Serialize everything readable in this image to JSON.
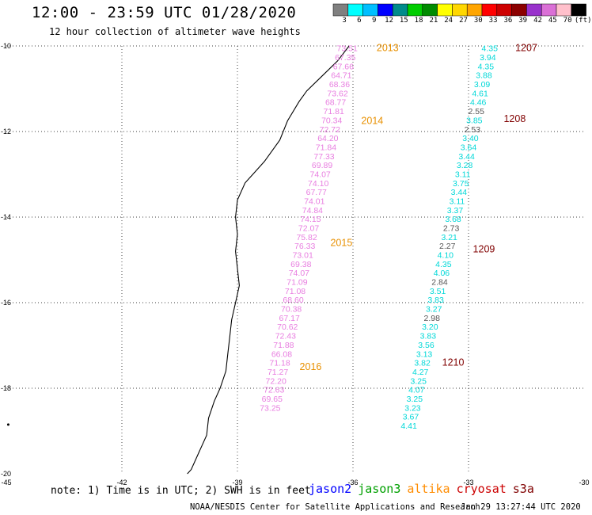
{
  "header": {
    "title": "12:00 - 23:59 UTC 01/28/2020",
    "subtitle": "12 hour collection of altimeter wave heights"
  },
  "colorscale": {
    "colors": [
      "#808080",
      "#00ffff",
      "#00bfff",
      "#0000ff",
      "#008b8b",
      "#00cd00",
      "#008b00",
      "#ffff00",
      "#ffd700",
      "#ffa500",
      "#ff0000",
      "#cd0000",
      "#8b0000",
      "#9932cc",
      "#da70d6",
      "#ffc0cb",
      "#000000"
    ],
    "labels": [
      "3",
      "6",
      "9",
      "12",
      "15",
      "18",
      "21",
      "24",
      "27",
      "30",
      "33",
      "36",
      "39",
      "42",
      "45",
      "70",
      "(ft)"
    ]
  },
  "map": {
    "lon_min": -45,
    "lon_max": -30,
    "lat_min": -20,
    "lat_max": -10,
    "lon_ticks": [
      "-45",
      "-42",
      "-39",
      "-36",
      "-33",
      "-30"
    ],
    "lat_ticks": [
      "-10",
      "-12",
      "-14",
      "-16",
      "-18",
      "-20"
    ],
    "coast": [
      [
        -36.1,
        -10.0
      ],
      [
        -36.4,
        -10.35
      ],
      [
        -36.8,
        -10.7
      ],
      [
        -37.2,
        -11.05
      ],
      [
        -37.4,
        -11.3
      ],
      [
        -37.7,
        -11.75
      ],
      [
        -37.9,
        -12.2
      ],
      [
        -38.3,
        -12.7
      ],
      [
        -38.6,
        -13.0
      ],
      [
        -38.8,
        -13.2
      ],
      [
        -39.0,
        -13.6
      ],
      [
        -39.05,
        -14.0
      ],
      [
        -39.0,
        -14.4
      ],
      [
        -39.05,
        -14.8
      ],
      [
        -39.0,
        -15.2
      ],
      [
        -38.95,
        -15.6
      ],
      [
        -39.05,
        -16.0
      ],
      [
        -39.15,
        -16.4
      ],
      [
        -39.2,
        -16.8
      ],
      [
        -39.25,
        -17.2
      ],
      [
        -39.3,
        -17.6
      ],
      [
        -39.45,
        -18.0
      ],
      [
        -39.6,
        -18.3
      ],
      [
        -39.75,
        -18.7
      ],
      [
        -39.8,
        -19.1
      ],
      [
        -40.0,
        -19.5
      ],
      [
        -40.2,
        -19.9
      ],
      [
        -40.3,
        -20.0
      ]
    ],
    "islands": [
      [
        -44.95,
        -18.85
      ]
    ]
  },
  "tracks": [
    {
      "satellite": "cryosat",
      "color": "#e87ee0",
      "points": [
        {
          "lon": -36.15,
          "lat": -10.05,
          "value": "73.51"
        },
        {
          "lon": -36.2,
          "lat": -10.26,
          "value": "67.35"
        },
        {
          "lon": -36.25,
          "lat": -10.47,
          "value": "67.66"
        },
        {
          "lon": -36.3,
          "lat": -10.68,
          "value": "64.71"
        },
        {
          "lon": -36.35,
          "lat": -10.89,
          "value": "68.36"
        },
        {
          "lon": -36.4,
          "lat": -11.1,
          "value": "73.62"
        },
        {
          "lon": -36.45,
          "lat": -11.31,
          "value": "68.77"
        },
        {
          "lon": -36.5,
          "lat": -11.52,
          "value": "71.81"
        },
        {
          "lon": -36.55,
          "lat": -11.73,
          "value": "70.34"
        },
        {
          "lon": -36.6,
          "lat": -11.94,
          "value": "72.72"
        },
        {
          "lon": -36.65,
          "lat": -12.15,
          "value": "64.20"
        },
        {
          "lon": -36.7,
          "lat": -12.36,
          "value": "71.84"
        },
        {
          "lon": -36.75,
          "lat": -12.57,
          "value": "77.33"
        },
        {
          "lon": -36.8,
          "lat": -12.78,
          "value": "69.89"
        },
        {
          "lon": -36.85,
          "lat": -12.99,
          "value": "74.07"
        },
        {
          "lon": -36.9,
          "lat": -13.2,
          "value": "74.10"
        },
        {
          "lon": -36.95,
          "lat": -13.41,
          "value": "67.77"
        },
        {
          "lon": -37.0,
          "lat": -13.62,
          "value": "74.01"
        },
        {
          "lon": -37.05,
          "lat": -13.83,
          "value": "74.84"
        },
        {
          "lon": -37.1,
          "lat": -14.04,
          "value": "74.15"
        },
        {
          "lon": -37.15,
          "lat": -14.25,
          "value": "72.07"
        },
        {
          "lon": -37.2,
          "lat": -14.46,
          "value": "75.82"
        },
        {
          "lon": -37.25,
          "lat": -14.67,
          "value": "76.33"
        },
        {
          "lon": -37.3,
          "lat": -14.88,
          "value": "73.01"
        },
        {
          "lon": -37.35,
          "lat": -15.09,
          "value": "69.38"
        },
        {
          "lon": -37.4,
          "lat": -15.3,
          "value": "74.07"
        },
        {
          "lon": -37.45,
          "lat": -15.51,
          "value": "71.09"
        },
        {
          "lon": -37.5,
          "lat": -15.72,
          "value": "71.08"
        },
        {
          "lon": -37.55,
          "lat": -15.93,
          "value": "68.60"
        },
        {
          "lon": -37.6,
          "lat": -16.14,
          "value": "70.38"
        },
        {
          "lon": -37.65,
          "lat": -16.35,
          "value": "67.17"
        },
        {
          "lon": -37.7,
          "lat": -16.56,
          "value": "70.62"
        },
        {
          "lon": -37.75,
          "lat": -16.77,
          "value": "72.43"
        },
        {
          "lon": -37.8,
          "lat": -16.98,
          "value": "71.88"
        },
        {
          "lon": -37.85,
          "lat": -17.19,
          "value": "66.08"
        },
        {
          "lon": -37.9,
          "lat": -17.4,
          "value": "71.18"
        },
        {
          "lon": -37.95,
          "lat": -17.61,
          "value": "71.27"
        },
        {
          "lon": -38.0,
          "lat": -17.82,
          "value": "72.20"
        },
        {
          "lon": -38.05,
          "lat": -18.03,
          "value": "72.63"
        },
        {
          "lon": -38.1,
          "lat": -18.24,
          "value": "69.65"
        },
        {
          "lon": -38.15,
          "lat": -18.45,
          "value": "73.25"
        }
      ]
    },
    {
      "satellite": "jason3",
      "color": "#00d8d8",
      "points": [
        {
          "lon": -32.45,
          "lat": -10.05,
          "value": "4.35"
        },
        {
          "lon": -32.5,
          "lat": -10.26,
          "value": "3.94"
        },
        {
          "lon": -32.55,
          "lat": -10.47,
          "value": "4.35"
        },
        {
          "lon": -32.6,
          "lat": -10.68,
          "value": "3.88"
        },
        {
          "lon": -32.65,
          "lat": -10.89,
          "value": "3.09"
        },
        {
          "lon": -32.7,
          "lat": -11.1,
          "value": "4.61"
        },
        {
          "lon": -32.75,
          "lat": -11.31,
          "value": "4.46"
        },
        {
          "lon": -32.8,
          "lat": -11.52,
          "value": "2.55",
          "color": "#555555"
        },
        {
          "lon": -32.85,
          "lat": -11.73,
          "value": "3.85"
        },
        {
          "lon": -32.9,
          "lat": -11.94,
          "value": "2.53",
          "color": "#555555"
        },
        {
          "lon": -32.95,
          "lat": -12.15,
          "value": "3.40"
        },
        {
          "lon": -33.0,
          "lat": -12.36,
          "value": "3.64"
        },
        {
          "lon": -33.05,
          "lat": -12.57,
          "value": "3.44"
        },
        {
          "lon": -33.1,
          "lat": -12.78,
          "value": "3.28"
        },
        {
          "lon": -33.15,
          "lat": -12.99,
          "value": "3.11"
        },
        {
          "lon": -33.2,
          "lat": -13.2,
          "value": "3.75"
        },
        {
          "lon": -33.25,
          "lat": -13.41,
          "value": "3.44"
        },
        {
          "lon": -33.3,
          "lat": -13.62,
          "value": "3.11"
        },
        {
          "lon": -33.35,
          "lat": -13.83,
          "value": "3.37"
        },
        {
          "lon": -33.4,
          "lat": -14.04,
          "value": "3.68"
        },
        {
          "lon": -33.45,
          "lat": -14.25,
          "value": "2.73",
          "color": "#555555"
        },
        {
          "lon": -33.5,
          "lat": -14.46,
          "value": "3.21"
        },
        {
          "lon": -33.55,
          "lat": -14.67,
          "value": "2.27",
          "color": "#555555"
        },
        {
          "lon": -33.6,
          "lat": -14.88,
          "value": "4.10"
        },
        {
          "lon": -33.65,
          "lat": -15.09,
          "value": "4.35"
        },
        {
          "lon": -33.7,
          "lat": -15.3,
          "value": "4.06"
        },
        {
          "lon": -33.75,
          "lat": -15.51,
          "value": "2.84",
          "color": "#555555"
        },
        {
          "lon": -33.8,
          "lat": -15.72,
          "value": "3.51"
        },
        {
          "lon": -33.85,
          "lat": -15.93,
          "value": "3.83"
        },
        {
          "lon": -33.9,
          "lat": -16.14,
          "value": "3.27"
        },
        {
          "lon": -33.95,
          "lat": -16.35,
          "value": "2.98",
          "color": "#555555"
        },
        {
          "lon": -34.0,
          "lat": -16.56,
          "value": "3.20"
        },
        {
          "lon": -34.05,
          "lat": -16.77,
          "value": "3.83"
        },
        {
          "lon": -34.1,
          "lat": -16.98,
          "value": "3.56"
        },
        {
          "lon": -34.15,
          "lat": -17.19,
          "value": "3.13"
        },
        {
          "lon": -34.2,
          "lat": -17.4,
          "value": "3.82"
        },
        {
          "lon": -34.25,
          "lat": -17.61,
          "value": "4.27"
        },
        {
          "lon": -34.3,
          "lat": -17.82,
          "value": "3.25"
        },
        {
          "lon": -34.35,
          "lat": -18.03,
          "value": "4.07"
        },
        {
          "lon": -34.4,
          "lat": -18.24,
          "value": "3.25"
        },
        {
          "lon": -34.45,
          "lat": -18.45,
          "value": "3.23"
        },
        {
          "lon": -34.5,
          "lat": -18.66,
          "value": "3.67"
        },
        {
          "lon": -34.55,
          "lat": -18.87,
          "value": "4.41"
        }
      ]
    }
  ],
  "time_labels": [
    {
      "text": "2013",
      "lon": -35.1,
      "lat": -10.05,
      "color": "#e89000"
    },
    {
      "text": "2014",
      "lon": -35.5,
      "lat": -11.75,
      "color": "#e89000"
    },
    {
      "text": "2015",
      "lon": -36.3,
      "lat": -14.6,
      "color": "#e89000"
    },
    {
      "text": "2016",
      "lon": -37.1,
      "lat": -17.5,
      "color": "#e89000"
    },
    {
      "text": "1207",
      "lon": -31.5,
      "lat": -10.05,
      "color": "#800000"
    },
    {
      "text": "1208",
      "lon": -31.8,
      "lat": -11.7,
      "color": "#800000"
    },
    {
      "text": "1209",
      "lon": -32.6,
      "lat": -14.75,
      "color": "#800000"
    },
    {
      "text": "1210",
      "lon": -33.4,
      "lat": -17.4,
      "color": "#800000"
    }
  ],
  "footer": {
    "note": "note: 1) Time is in UTC; 2) SWH is in feet",
    "satellites": [
      {
        "name": "jason2",
        "color": "#0000ff"
      },
      {
        "name": "jason3",
        "color": "#00a000"
      },
      {
        "name": "altika",
        "color": "#ff8c00"
      },
      {
        "name": "cryosat",
        "color": "#cc0000"
      },
      {
        "name": "s3a",
        "color": "#800000"
      }
    ],
    "credit": "NOAA/NESDIS Center for Satellite Applications and Research",
    "timestamp": "Jan 29 13:27:44 UTC 2020"
  }
}
